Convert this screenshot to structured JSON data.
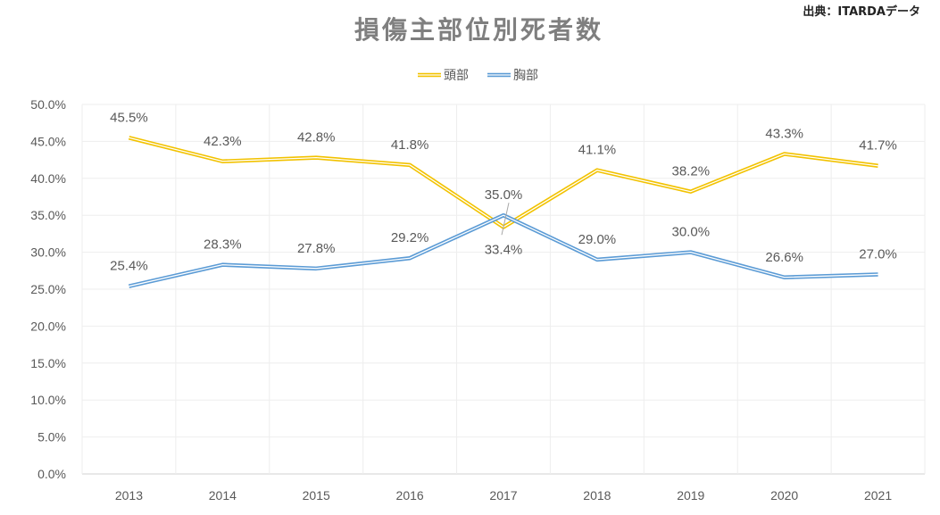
{
  "source": "出典：ITARDAデータ",
  "chart_data": {
    "type": "line",
    "title": "損傷主部位別死者数",
    "categories": [
      "2013",
      "2014",
      "2015",
      "2016",
      "2017",
      "2018",
      "2019",
      "2020",
      "2021"
    ],
    "series": [
      {
        "name": "頭部",
        "color": "#f2c200",
        "values": [
          45.5,
          42.3,
          42.8,
          41.8,
          33.4,
          41.1,
          38.2,
          43.3,
          41.7
        ],
        "labels": [
          "45.5%",
          "42.3%",
          "42.8%",
          "41.8%",
          "33.4%",
          "41.1%",
          "38.2%",
          "43.3%",
          "41.7%"
        ]
      },
      {
        "name": "胸部",
        "color": "#5b9bd5",
        "values": [
          25.4,
          28.3,
          27.8,
          29.2,
          35.0,
          29.0,
          30.0,
          26.6,
          27.0
        ],
        "labels": [
          "25.4%",
          "28.3%",
          "27.8%",
          "29.2%",
          "35.0%",
          "29.0%",
          "30.0%",
          "26.6%",
          "27.0%"
        ]
      }
    ],
    "ylim": [
      0,
      50
    ],
    "yticks": [
      "0.0%",
      "5.0%",
      "10.0%",
      "15.0%",
      "20.0%",
      "25.0%",
      "30.0%",
      "35.0%",
      "40.0%",
      "45.0%",
      "50.0%"
    ],
    "grid": true,
    "legend": "top-center"
  }
}
